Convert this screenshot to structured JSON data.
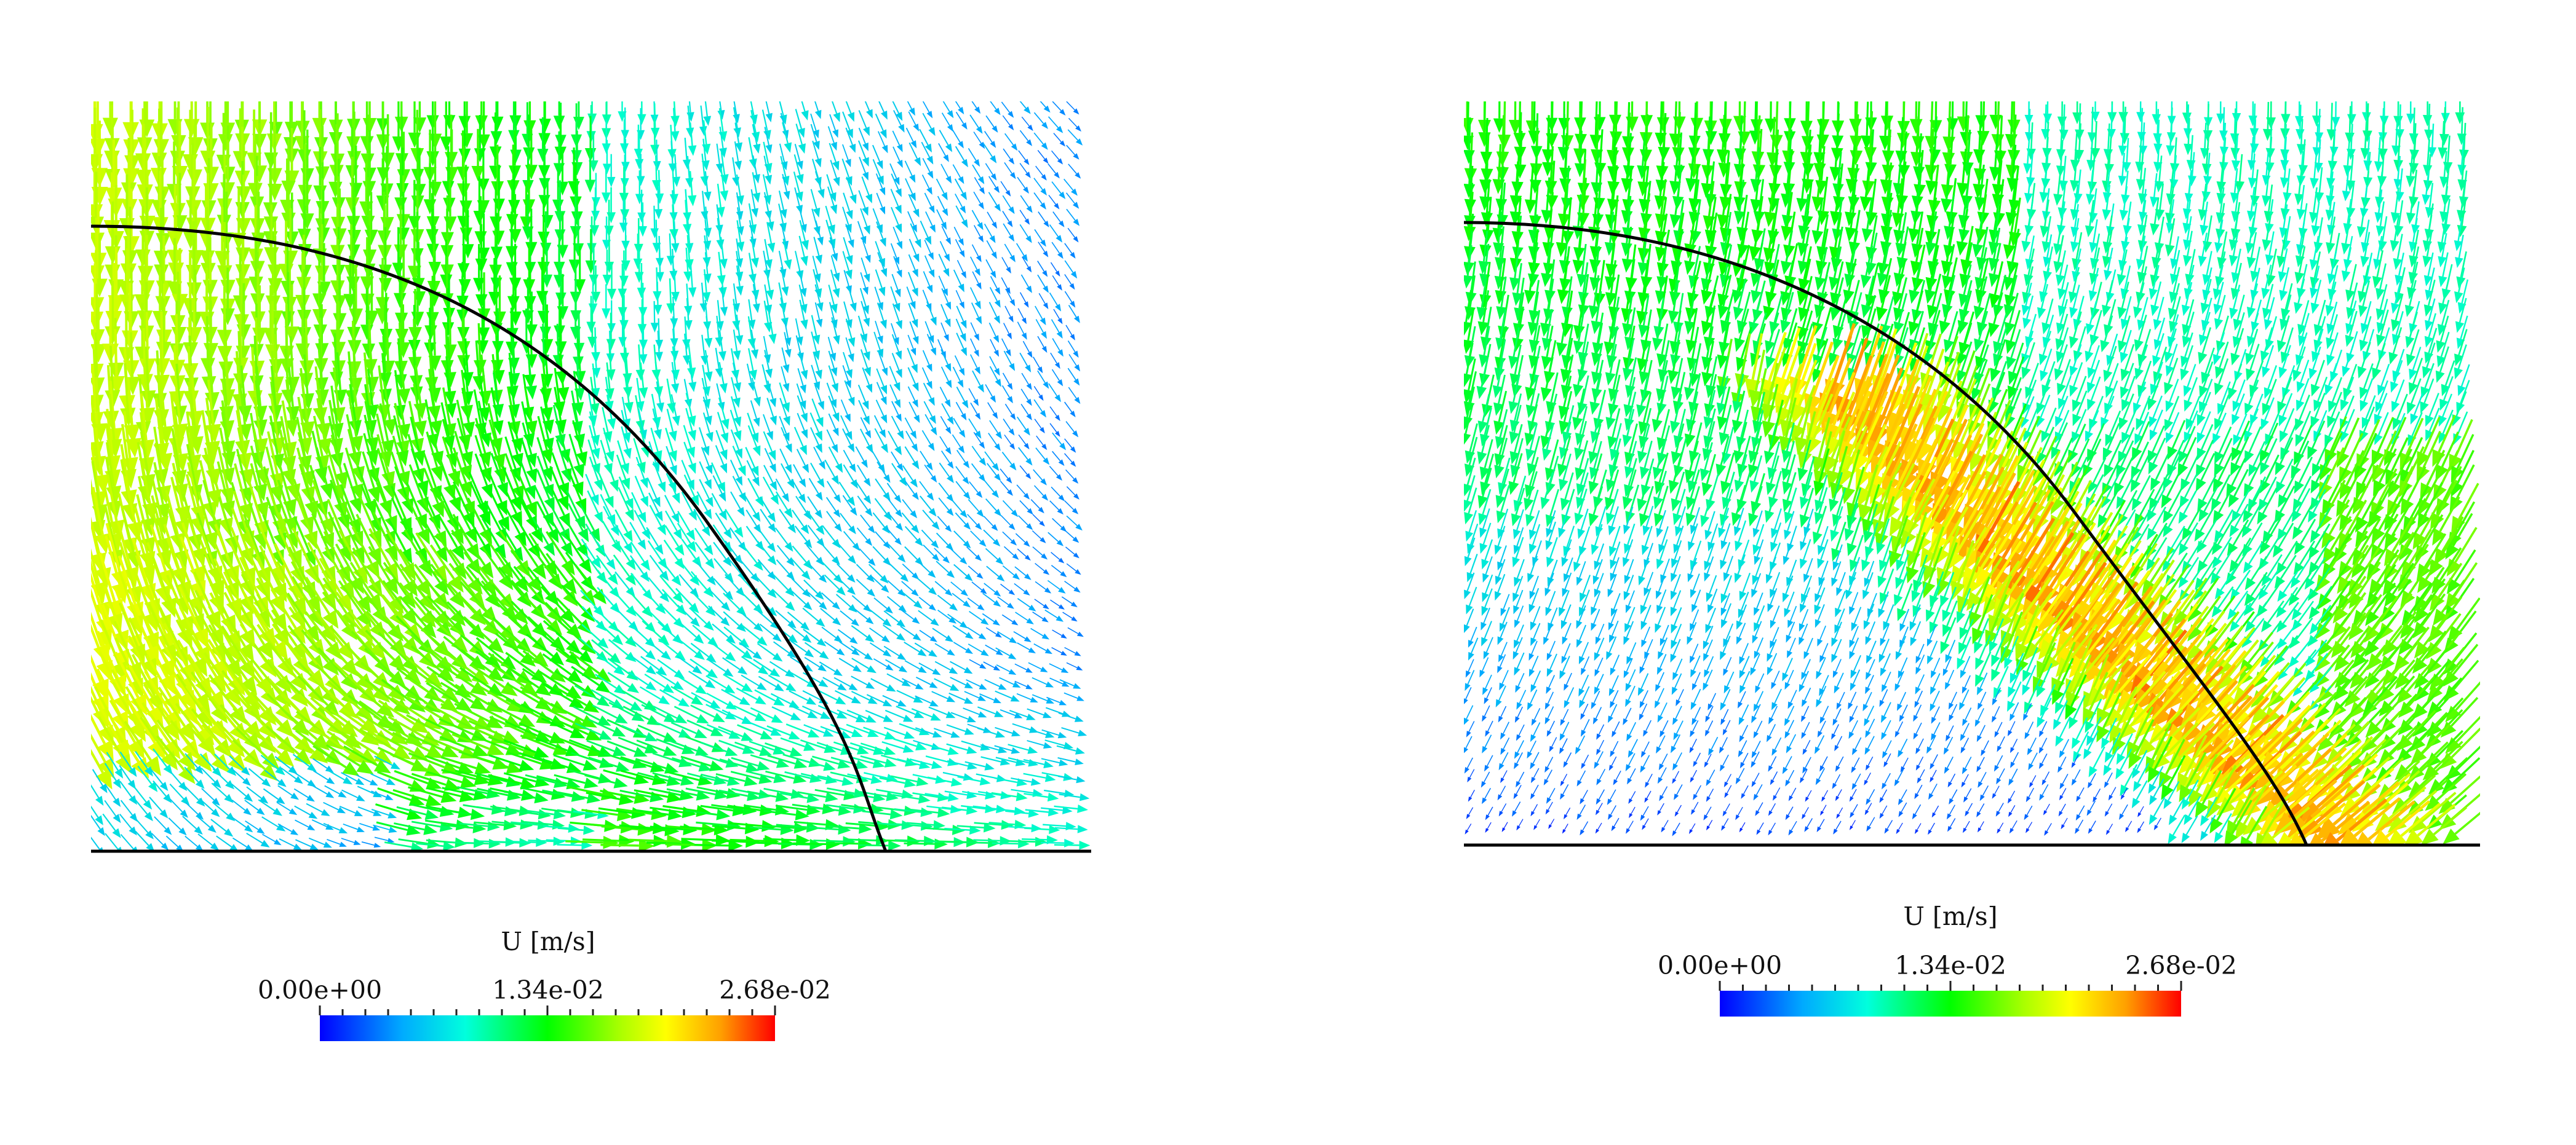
{
  "panels": [
    {
      "id": "left",
      "colorbar": {
        "title": "U [m/s]",
        "tick_labels": [
          "0.00e+00",
          "1.34e-02",
          "2.68e-02"
        ],
        "range": [
          0.0,
          0.0268
        ]
      }
    },
    {
      "id": "right",
      "colorbar": {
        "title": "U [m/s]",
        "tick_labels": [
          "0.00e+00",
          "1.34e-02",
          "2.68e-02"
        ],
        "range": [
          0.0,
          0.0268
        ]
      }
    }
  ],
  "colormap": [
    "#0000ff",
    "#00aaff",
    "#00ffcc",
    "#00ff00",
    "#aaff00",
    "#ffff00",
    "#ffa000",
    "#ff0000"
  ]
}
